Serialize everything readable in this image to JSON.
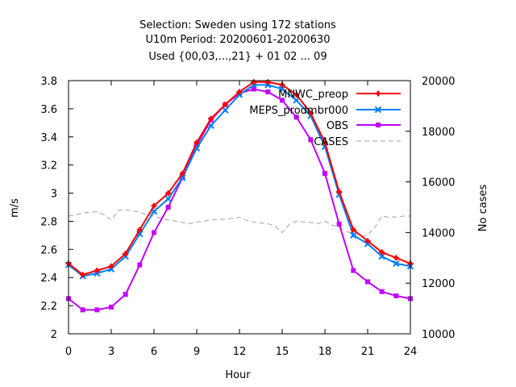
{
  "chart_data": {
    "type": "line",
    "title_lines": [
      "Selection: Sweden using   172 stations",
      "U10m   Period: 20200601-20200630",
      "Used {00,03,...,21} + 01 02 ... 09"
    ],
    "xlabel": "Hour",
    "ylabel": "m/s",
    "y2label": "No cases",
    "xlim": [
      0,
      24
    ],
    "ylim": [
      2,
      3.8
    ],
    "y2lim": [
      10000,
      20000
    ],
    "x_ticks": [
      0,
      3,
      6,
      9,
      12,
      15,
      18,
      21,
      24
    ],
    "x_tick_labels": [
      "0",
      "3",
      "6",
      "9",
      "12",
      "15",
      "18",
      "21",
      "24"
    ],
    "y_ticks": [
      2,
      2.2,
      2.4,
      2.6,
      2.8,
      3,
      3.2,
      3.4,
      3.6,
      3.8
    ],
    "y_tick_labels": [
      "2",
      "2.2",
      "2.4",
      "2.6",
      "2.8",
      "3",
      "3.2",
      "3.4",
      "3.6",
      "3.8"
    ],
    "y2_ticks": [
      10000,
      12000,
      14000,
      16000,
      18000,
      20000
    ],
    "y2_tick_labels": [
      "10000",
      "12000",
      "14000",
      "16000",
      "18000",
      "20000"
    ],
    "grid": false,
    "legend_position": "top-right",
    "x": [
      0,
      1,
      2,
      3,
      4,
      5,
      6,
      7,
      8,
      9,
      10,
      11,
      12,
      13,
      14,
      15,
      16,
      17,
      18,
      19,
      20,
      21,
      22,
      23,
      24
    ],
    "series": [
      {
        "name": "MNWC_preop",
        "color": "#ff0000",
        "marker": "plus",
        "axis": "y",
        "values": [
          2.5,
          2.42,
          2.45,
          2.48,
          2.57,
          2.74,
          2.91,
          3.0,
          3.14,
          3.36,
          3.53,
          3.63,
          3.72,
          3.79,
          3.79,
          3.77,
          3.7,
          3.57,
          3.36,
          3.01,
          2.74,
          2.66,
          2.58,
          2.54,
          2.5
        ]
      },
      {
        "name": "MEPS_prodmbr000",
        "color": "#0080ff",
        "marker": "x",
        "axis": "y",
        "values": [
          2.49,
          2.41,
          2.43,
          2.46,
          2.55,
          2.71,
          2.87,
          2.96,
          3.11,
          3.32,
          3.48,
          3.59,
          3.7,
          3.77,
          3.77,
          3.74,
          3.66,
          3.55,
          3.33,
          2.99,
          2.7,
          2.64,
          2.55,
          2.5,
          2.48
        ]
      },
      {
        "name": "OBS",
        "color": "#c000ff",
        "marker": "square",
        "axis": "y",
        "values": [
          2.25,
          2.17,
          2.17,
          2.19,
          2.28,
          2.49,
          2.72,
          2.9,
          3.11,
          3.34,
          3.52,
          3.63,
          3.71,
          3.74,
          3.72,
          3.66,
          3.54,
          3.38,
          3.14,
          2.78,
          2.45,
          2.37,
          2.3,
          2.27,
          2.25
        ]
      },
      {
        "name": "CASES",
        "color": "#a0a0a0",
        "marker": "none",
        "dashed": true,
        "axis": "y2",
        "x": [
          0,
          0.5,
          1,
          1.5,
          2,
          2.5,
          3,
          3.5,
          4,
          4.5,
          5,
          5.5,
          6,
          6.5,
          7,
          7.5,
          8,
          8.5,
          9,
          9.5,
          10,
          10.5,
          11,
          11.5,
          12,
          12.5,
          13,
          13.5,
          14,
          14.5,
          15,
          15.5,
          16,
          16.5,
          17,
          17.5,
          18,
          18.5,
          19,
          19.5,
          20,
          20.5,
          21,
          21.5,
          22,
          22.5,
          23,
          23.5,
          24
        ],
        "values": [
          14650,
          14700,
          14780,
          14800,
          14820,
          14700,
          14500,
          14880,
          14900,
          14850,
          14800,
          14700,
          14650,
          14550,
          14500,
          14450,
          14400,
          14350,
          14420,
          14450,
          14500,
          14520,
          14520,
          14560,
          14600,
          14480,
          14420,
          14380,
          14350,
          14250,
          14000,
          14320,
          14450,
          14420,
          14400,
          14350,
          14450,
          14300,
          14200,
          14050,
          13950,
          13850,
          13900,
          14200,
          14650,
          14600,
          14620,
          14650,
          14650
        ]
      }
    ]
  }
}
